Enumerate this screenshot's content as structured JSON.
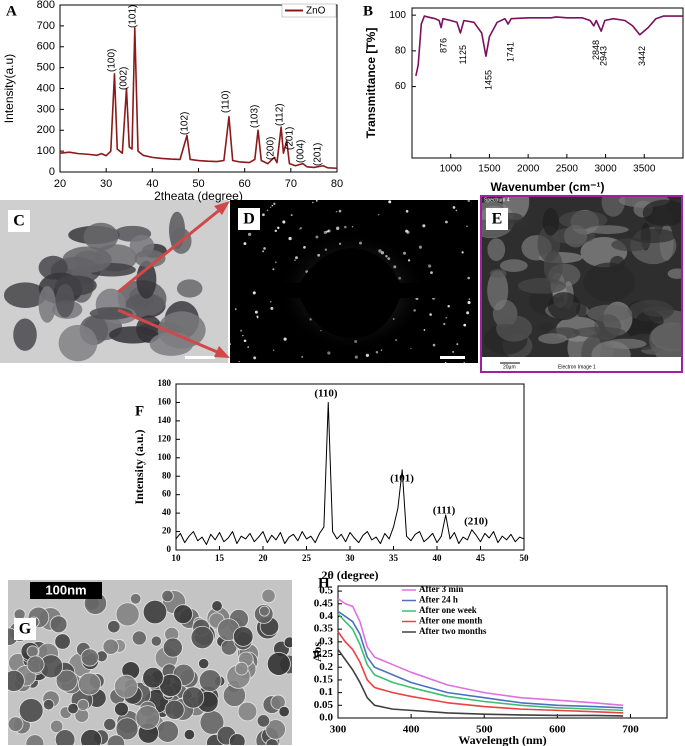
{
  "images": [
    {
      "label": "C"
    },
    {
      "label": "D"
    },
    {
      "label": "E",
      "header": "Spectrum 4",
      "scale": "20µm",
      "caption": "Electron Image 1"
    },
    {
      "label": "G",
      "scale": "100nm"
    }
  ],
  "chart_data": [
    {
      "type": "line",
      "label": "A",
      "xlabel": "2theata (degree)",
      "ylabel": "Intensity(a.u)",
      "x": [
        20,
        22,
        24,
        26,
        28,
        29,
        30,
        31,
        31.8,
        32.4,
        33.5,
        34.4,
        35,
        35.6,
        36.2,
        36.9,
        38,
        40,
        42,
        44,
        46,
        47.5,
        48.2,
        50,
        52,
        54,
        55.5,
        56.6,
        57.4,
        59,
        61,
        62.2,
        62.9,
        63.6,
        65,
        66.4,
        67,
        67.9,
        68.4,
        69.1,
        69.7,
        71,
        72.6,
        73.5,
        75,
        77,
        78,
        80
      ],
      "series": [
        {
          "name": "ZnO",
          "color": "#8b1a1a",
          "values": [
            90,
            95,
            88,
            85,
            80,
            88,
            78,
            100,
            470,
            110,
            90,
            400,
            120,
            110,
            690,
            100,
            80,
            70,
            65,
            62,
            60,
            175,
            60,
            55,
            52,
            50,
            55,
            265,
            55,
            48,
            45,
            60,
            200,
            55,
            40,
            70,
            45,
            215,
            90,
            150,
            40,
            30,
            40,
            25,
            22,
            30,
            20,
            18
          ]
        }
      ],
      "xlim": [
        20,
        80
      ],
      "ylim": [
        0,
        800
      ],
      "xticks": [
        20,
        30,
        40,
        50,
        60,
        70,
        80
      ],
      "yticks": [
        0,
        100,
        200,
        300,
        400,
        500,
        600,
        700,
        800
      ],
      "annotations": [
        "(100)",
        "(002)",
        "(101)",
        "(102)",
        "(110)",
        "(103)",
        "(200)",
        "(112)",
        "(201)",
        "(004)",
        "(201)"
      ]
    },
    {
      "type": "line",
      "label": "B",
      "xlabel": "Wavenumber (cm⁻¹)",
      "ylabel": "Transmittance [T%]",
      "x": [
        550,
        580,
        620,
        660,
        700,
        800,
        850,
        876,
        900,
        1000,
        1080,
        1125,
        1170,
        1300,
        1400,
        1455,
        1500,
        1600,
        1700,
        1741,
        1780,
        2000,
        2300,
        2360,
        2500,
        2700,
        2800,
        2848,
        2880,
        2943,
        2990,
        3100,
        3250,
        3350,
        3442,
        3550,
        3650,
        3750,
        4000
      ],
      "values": [
        66,
        72,
        95,
        99.5,
        99,
        98,
        97,
        93,
        98,
        97,
        96,
        90,
        97,
        96,
        90,
        77,
        88,
        96,
        98,
        95,
        98,
        98.5,
        98.5,
        99,
        98.5,
        98.5,
        97,
        94,
        97,
        91,
        97,
        98,
        97,
        94,
        89,
        93,
        98,
        99.5,
        99.5
      ],
      "color": "#7a1060",
      "xlim": [
        500,
        4000
      ],
      "ylim": [
        20,
        104
      ],
      "xticks": [
        1000,
        1500,
        2000,
        2500,
        3000,
        3500
      ],
      "yticks": [
        60,
        80,
        100
      ],
      "annotations": [
        876,
        1125,
        1455,
        1741,
        2848,
        2943,
        3442
      ]
    },
    {
      "type": "line",
      "label": "F",
      "xlabel": "2θ (degree)",
      "ylabel": "Intensity (a.u.)",
      "x": [
        10,
        10.5,
        11,
        11.5,
        12,
        12.5,
        13,
        13.5,
        14,
        14.5,
        15,
        15.5,
        16,
        16.5,
        17,
        17.5,
        18,
        18.5,
        19,
        19.5,
        20,
        20.5,
        21,
        21.5,
        22,
        22.5,
        23,
        23.5,
        24,
        24.5,
        25,
        25.5,
        26,
        26.5,
        27,
        27.5,
        28,
        28.5,
        29,
        29.5,
        30,
        30.5,
        31,
        31.5,
        32,
        32.5,
        33,
        33.5,
        34,
        34.5,
        35,
        35.5,
        36,
        36.5,
        37,
        37.5,
        38,
        38.5,
        39,
        39.5,
        40,
        40.5,
        41,
        41.5,
        42,
        42.5,
        43,
        43.5,
        44,
        44.5,
        45,
        45.5,
        46,
        46.5,
        47,
        47.5,
        48,
        48.5,
        49,
        49.5,
        50
      ],
      "values": [
        12,
        18,
        8,
        15,
        20,
        10,
        14,
        6,
        17,
        11,
        19,
        9,
        13,
        20,
        7,
        15,
        12,
        18,
        9,
        14,
        20,
        8,
        16,
        11,
        19,
        7,
        14,
        17,
        10,
        20,
        12,
        15,
        8,
        18,
        25,
        160,
        20,
        12,
        17,
        9,
        19,
        13,
        8,
        16,
        20,
        11,
        14,
        7,
        18,
        12,
        25,
        45,
        87,
        15,
        10,
        17,
        20,
        9,
        13,
        18,
        8,
        15,
        38,
        12,
        19,
        7,
        14,
        11,
        22,
        16,
        9,
        18,
        13,
        20,
        8,
        15,
        11,
        17,
        9,
        14,
        12
      ],
      "color": "#000000",
      "xlim": [
        10,
        50
      ],
      "ylim": [
        0,
        180
      ],
      "xticks": [
        10,
        15,
        20,
        25,
        30,
        35,
        40,
        45,
        50
      ],
      "yticks": [
        0,
        20,
        40,
        60,
        80,
        100,
        120,
        140,
        160,
        180
      ],
      "annotations": [
        "(110)",
        "(101)",
        "(111)",
        "(210)"
      ]
    },
    {
      "type": "line",
      "label": "H",
      "xlabel": "Wavelength (nm)",
      "ylabel": "Abs",
      "x": [
        300,
        310,
        320,
        330,
        340,
        350,
        375,
        400,
        450,
        500,
        550,
        600,
        650,
        690
      ],
      "series": [
        {
          "name": "After 3 min",
          "color": "#e070e0",
          "values": [
            0.47,
            0.45,
            0.44,
            0.38,
            0.28,
            0.24,
            0.21,
            0.18,
            0.13,
            0.1,
            0.08,
            0.07,
            0.06,
            0.05
          ]
        },
        {
          "name": "After 24 h",
          "color": "#4f6fc0",
          "values": [
            0.42,
            0.4,
            0.38,
            0.33,
            0.24,
            0.2,
            0.17,
            0.14,
            0.1,
            0.08,
            0.06,
            0.05,
            0.045,
            0.04
          ]
        },
        {
          "name": "After one week",
          "color": "#3cc070",
          "values": [
            0.41,
            0.38,
            0.35,
            0.29,
            0.21,
            0.17,
            0.14,
            0.12,
            0.085,
            0.065,
            0.05,
            0.04,
            0.035,
            0.03
          ]
        },
        {
          "name": "After one month",
          "color": "#f04040",
          "values": [
            0.34,
            0.3,
            0.27,
            0.22,
            0.15,
            0.12,
            0.1,
            0.085,
            0.06,
            0.045,
            0.035,
            0.03,
            0.025,
            0.02
          ]
        },
        {
          "name": "After two months",
          "color": "#404040",
          "values": [
            0.27,
            0.23,
            0.19,
            0.14,
            0.08,
            0.05,
            0.035,
            0.03,
            0.02,
            0.015,
            0.012,
            0.01,
            0.01,
            0.008
          ]
        }
      ],
      "xlim": [
        300,
        750
      ],
      "ylim": [
        0,
        0.52
      ],
      "xticks": [
        300,
        400,
        500,
        600,
        700
      ],
      "yticks": [
        {
          "value": 0,
          "label": "0.0"
        },
        0.05,
        0.1,
        0.15,
        0.2,
        0.25,
        0.3,
        0.35,
        0.4,
        0.45,
        0.5
      ]
    }
  ]
}
